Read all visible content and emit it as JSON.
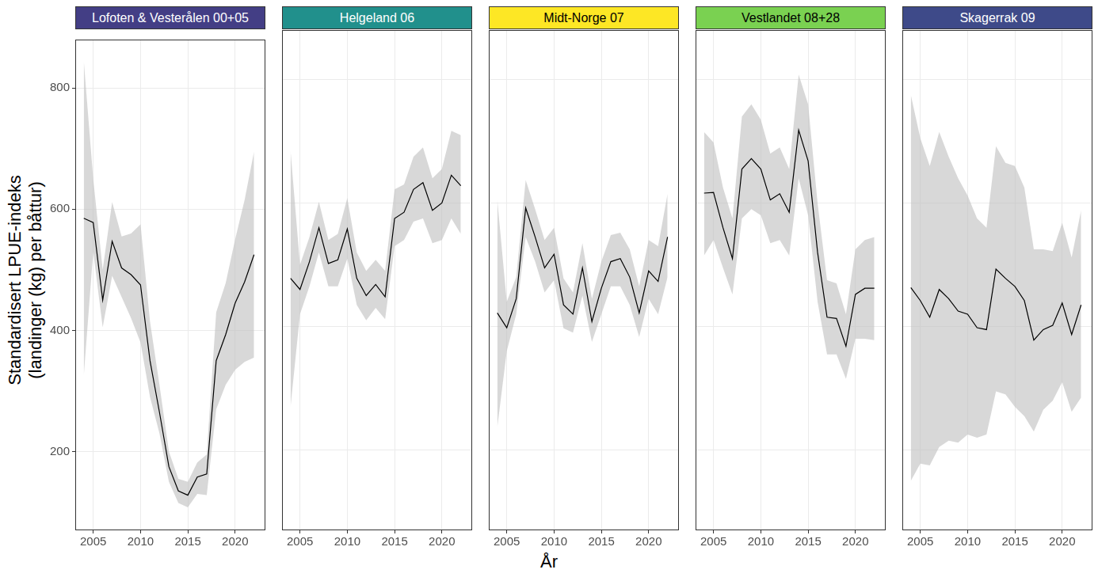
{
  "chart_data": {
    "type": "line",
    "xlabel": "År",
    "ylabel": [
      "Standardisert LPUE-indeks",
      "(landinger (kg) per båttur)"
    ],
    "x": [
      2004,
      2005,
      2006,
      2007,
      2008,
      2009,
      2010,
      2011,
      2012,
      2013,
      2014,
      2015,
      2016,
      2017,
      2018,
      2019,
      2020,
      2021,
      2022
    ],
    "xlim": [
      2003.1,
      2023.2
    ],
    "xticks": [
      2005,
      2010,
      2015,
      2020
    ],
    "ylim": [
      70,
      880
    ],
    "yticks": [
      200,
      400,
      600,
      800
    ],
    "grid": true,
    "panels": [
      {
        "title": "Lofoten & Vesterålen 00+05",
        "color": "#433e85",
        "values": [
          585,
          578,
          450,
          547,
          503,
          492,
          475,
          350,
          265,
          175,
          135,
          128,
          158,
          163,
          350,
          393,
          445,
          480,
          525
        ],
        "lower": [
          325,
          530,
          405,
          490,
          455,
          420,
          380,
          290,
          230,
          150,
          115,
          108,
          130,
          128,
          270,
          310,
          335,
          348,
          355
        ],
        "upper": [
          845,
          650,
          500,
          612,
          555,
          560,
          575,
          415,
          310,
          200,
          155,
          150,
          182,
          195,
          430,
          478,
          550,
          615,
          695
        ]
      },
      {
        "title": "Helgeland 06",
        "color": "#21908c",
        "values": [
          478,
          460,
          505,
          560,
          502,
          508,
          558,
          478,
          450,
          468,
          448,
          575,
          585,
          622,
          633,
          588,
          600,
          645,
          628
        ],
        "lower": [
          270,
          420,
          465,
          520,
          465,
          465,
          510,
          435,
          410,
          430,
          412,
          530,
          540,
          570,
          575,
          535,
          540,
          575,
          550
        ],
        "upper": [
          685,
          500,
          545,
          602,
          540,
          550,
          608,
          520,
          490,
          508,
          490,
          622,
          630,
          675,
          690,
          640,
          655,
          717,
          710
        ]
      },
      {
        "title": "Midt-Norge 07",
        "color": "#fde725",
        "values": [
          422,
          398,
          445,
          592,
          545,
          495,
          517,
          435,
          420,
          495,
          408,
          462,
          505,
          510,
          480,
          422,
          490,
          473,
          545
        ],
        "lower": [
          237,
          360,
          420,
          545,
          505,
          455,
          475,
          397,
          390,
          450,
          375,
          420,
          465,
          465,
          435,
          383,
          445,
          420,
          480
        ],
        "upper": [
          605,
          440,
          480,
          637,
          590,
          540,
          560,
          478,
          455,
          535,
          445,
          505,
          548,
          552,
          525,
          465,
          540,
          530,
          615
        ]
      },
      {
        "title": "Vestlandet 08+28",
        "color": "#7ad151",
        "values": [
          616,
          617,
          560,
          510,
          655,
          672,
          655,
          605,
          615,
          585,
          718,
          668,
          520,
          415,
          413,
          368,
          452,
          462,
          462
        ],
        "lower": [
          515,
          540,
          495,
          452,
          575,
          590,
          580,
          535,
          540,
          515,
          640,
          580,
          440,
          355,
          355,
          315,
          380,
          380,
          378
        ],
        "upper": [
          715,
          698,
          625,
          575,
          740,
          760,
          735,
          680,
          690,
          655,
          808,
          760,
          600,
          475,
          470,
          420,
          525,
          540,
          545
        ]
      },
      {
        "title": "Skagerrak 09",
        "color": "#3e4a89",
        "values": [
          463,
          442,
          415,
          460,
          445,
          425,
          420,
          398,
          395,
          493,
          478,
          465,
          442,
          378,
          395,
          402,
          438,
          387,
          435
        ],
        "lower": [
          150,
          178,
          175,
          205,
          215,
          212,
          225,
          220,
          225,
          295,
          290,
          270,
          255,
          230,
          265,
          280,
          310,
          262,
          285
        ],
        "upper": [
          775,
          705,
          660,
          715,
          675,
          640,
          612,
          575,
          560,
          692,
          665,
          660,
          625,
          525,
          525,
          522,
          568,
          512,
          588
        ]
      }
    ]
  }
}
